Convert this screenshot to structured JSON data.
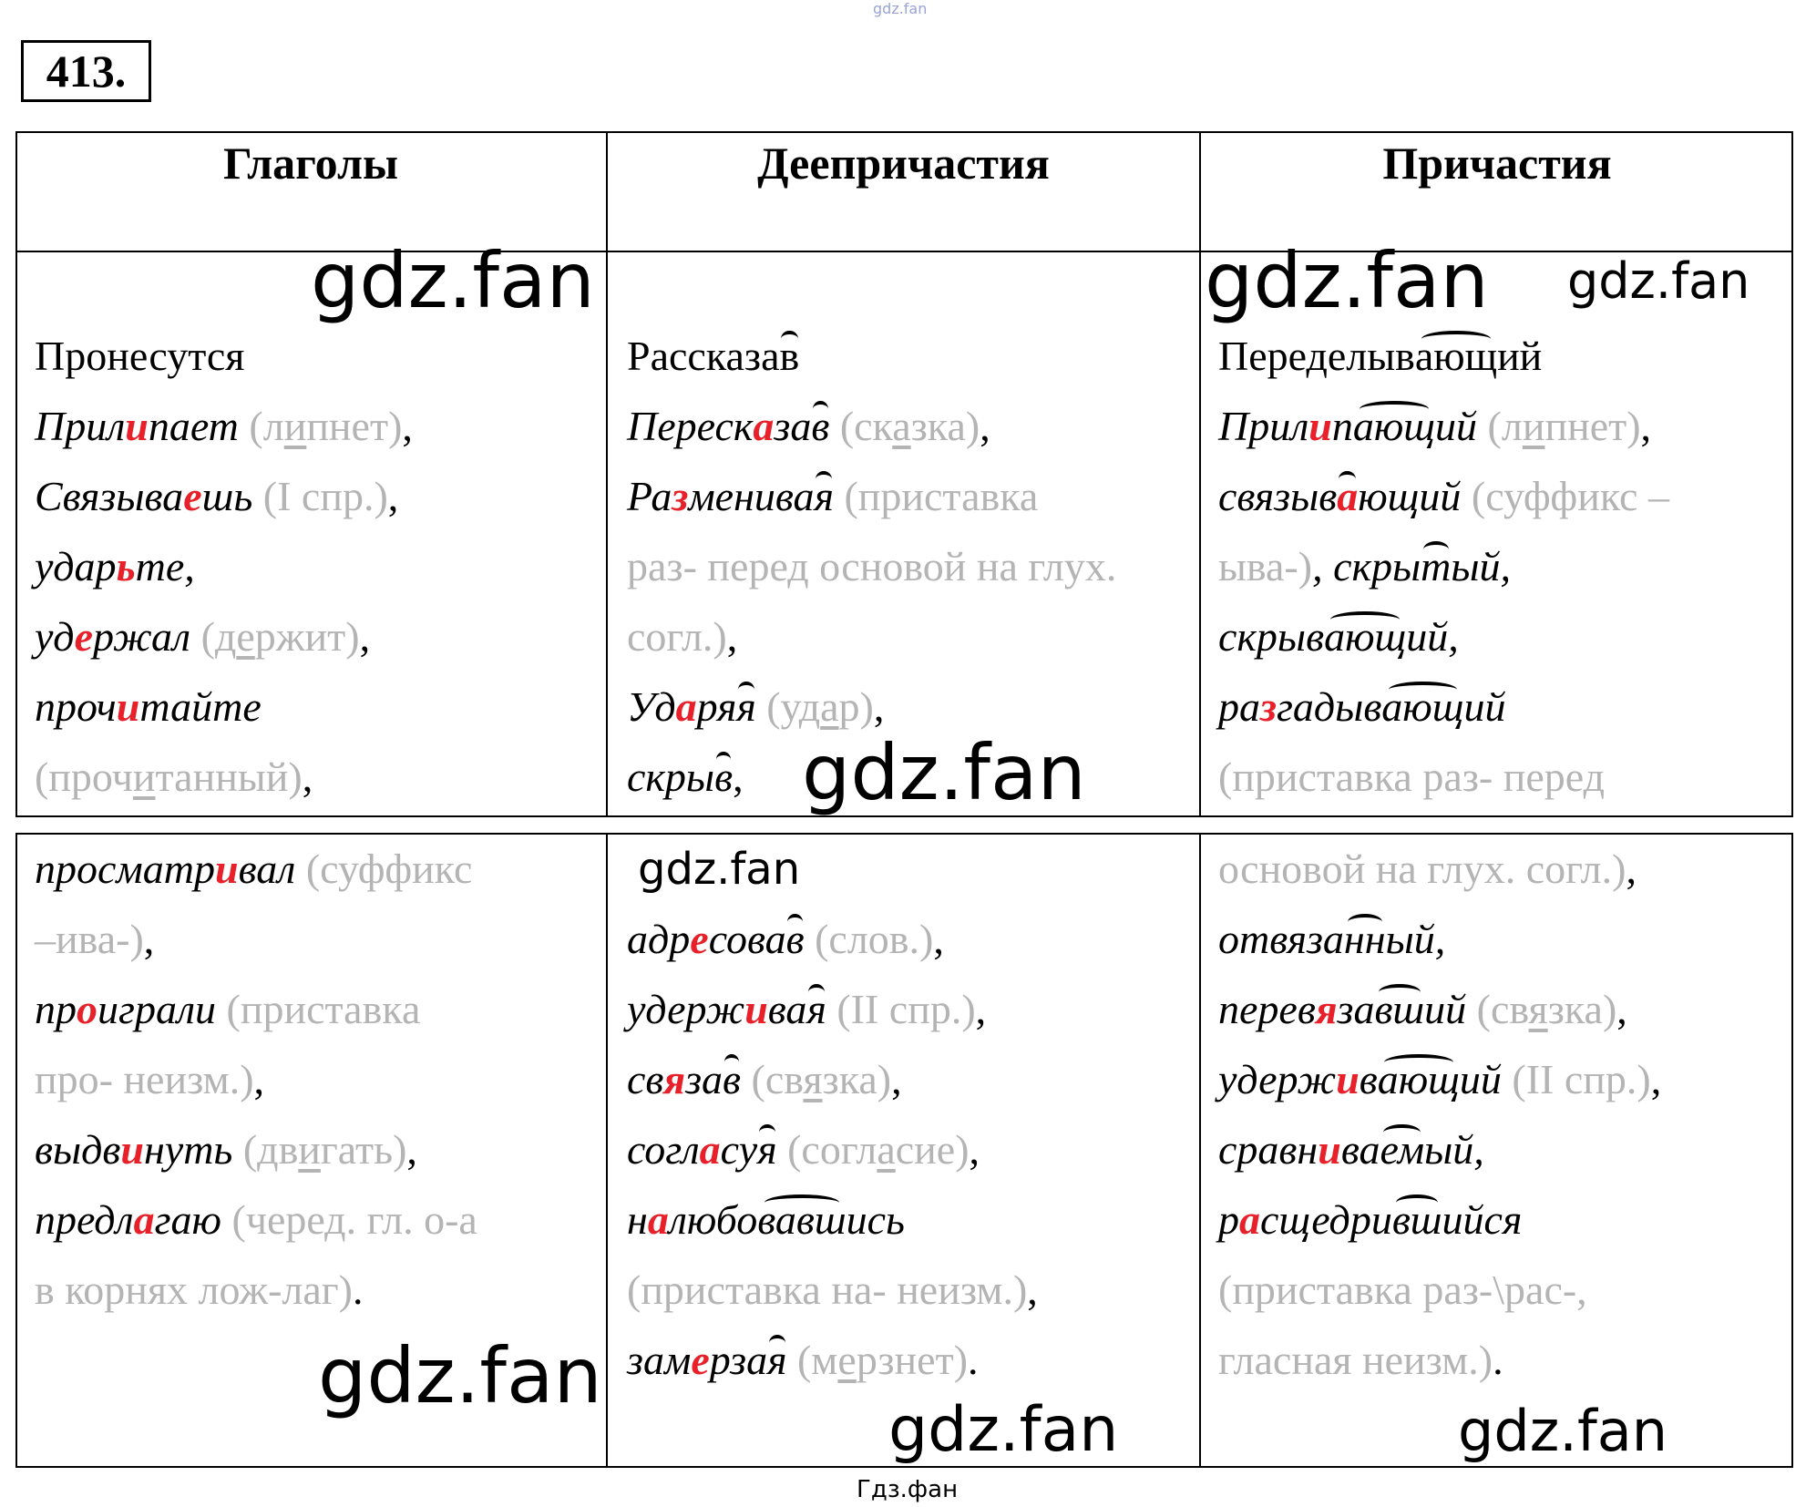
{
  "exercise_number": "413.",
  "top_watermark": "gdz.fan",
  "footer": "Гдз.фан",
  "headers": [
    "Глаголы",
    "Деепричастия",
    "Причастия"
  ],
  "watermark": "gdz.fan",
  "colors": {
    "highlight": "#e8202a",
    "note": "#b4b4b4",
    "border": "#000000"
  },
  "row1": [
    [
      [
        {
          "t": "Пронесутся",
          "s": "n"
        }
      ],
      [
        {
          "t": "Прил",
          "s": "i"
        },
        {
          "t": "и",
          "s": "r"
        },
        {
          "t": "пает ",
          "s": "i"
        },
        {
          "t": "(л",
          "s": "g"
        },
        {
          "t": "и",
          "s": "gu"
        },
        {
          "t": "пнет)",
          "s": "g"
        },
        {
          "t": ",",
          "s": "n"
        }
      ],
      [
        {
          "t": "Связыва",
          "s": "i"
        },
        {
          "t": "е",
          "s": "r"
        },
        {
          "t": "шь ",
          "s": "i"
        },
        {
          "t": "(I спр.)",
          "s": "g"
        },
        {
          "t": ",",
          "s": "n"
        }
      ],
      [
        {
          "t": "удар",
          "s": "i"
        },
        {
          "t": "ь",
          "s": "r"
        },
        {
          "t": "те,",
          "s": "i"
        }
      ],
      [
        {
          "t": "уд",
          "s": "i"
        },
        {
          "t": "е",
          "s": "r"
        },
        {
          "t": "ржал ",
          "s": "i"
        },
        {
          "t": "(д",
          "s": "g"
        },
        {
          "t": "е",
          "s": "gu"
        },
        {
          "t": "ржит)",
          "s": "g"
        },
        {
          "t": ",",
          "s": "n"
        }
      ],
      [
        {
          "t": "проч",
          "s": "i"
        },
        {
          "t": "и",
          "s": "r"
        },
        {
          "t": "тайте",
          "s": "i"
        }
      ],
      [
        {
          "t": "(проч",
          "s": "g"
        },
        {
          "t": "и",
          "s": "gu"
        },
        {
          "t": "танный)",
          "s": "g"
        },
        {
          "t": ",",
          "s": "n"
        }
      ]
    ],
    [
      [
        {
          "t": "Рассказа",
          "s": "n"
        },
        {
          "t": "в",
          "s": "n",
          "a": true
        }
      ],
      [
        {
          "t": "Переск",
          "s": "i"
        },
        {
          "t": "а",
          "s": "r"
        },
        {
          "t": "за",
          "s": "i"
        },
        {
          "t": "в",
          "s": "i",
          "a": true
        },
        {
          "t": " (ск",
          "s": "g"
        },
        {
          "t": "а",
          "s": "gu"
        },
        {
          "t": "зка)",
          "s": "g"
        },
        {
          "t": ",",
          "s": "n"
        }
      ],
      [
        {
          "t": "Ра",
          "s": "i"
        },
        {
          "t": "з",
          "s": "r"
        },
        {
          "t": "менива",
          "s": "i"
        },
        {
          "t": "я",
          "s": "i",
          "a": true
        },
        {
          "t": " (приставка",
          "s": "g"
        }
      ],
      [
        {
          "t": "раз- перед основой на глух.",
          "s": "g"
        }
      ],
      [
        {
          "t": "согл.)",
          "s": "g"
        },
        {
          "t": ",",
          "s": "n"
        }
      ],
      [
        {
          "t": "Уд",
          "s": "i"
        },
        {
          "t": "а",
          "s": "r"
        },
        {
          "t": "ря",
          "s": "i"
        },
        {
          "t": "я",
          "s": "i",
          "a": true
        },
        {
          "t": " (уд",
          "s": "g"
        },
        {
          "t": "а",
          "s": "gu"
        },
        {
          "t": "р)",
          "s": "g"
        },
        {
          "t": ",",
          "s": "n"
        }
      ],
      [
        {
          "t": "скры",
          "s": "i"
        },
        {
          "t": "в",
          "s": "i",
          "a": true
        },
        {
          "t": ",",
          "s": "n"
        }
      ]
    ],
    [
      [
        {
          "t": "Переделыв",
          "s": "n"
        },
        {
          "t": "ающ",
          "s": "n",
          "a": true
        },
        {
          "t": "ий",
          "s": "n"
        }
      ],
      [
        {
          "t": "Прил",
          "s": "i"
        },
        {
          "t": "и",
          "s": "r"
        },
        {
          "t": "п",
          "s": "i"
        },
        {
          "t": "ающ",
          "s": "i",
          "a": true
        },
        {
          "t": "ий ",
          "s": "i"
        },
        {
          "t": "(л",
          "s": "g"
        },
        {
          "t": "и",
          "s": "gu"
        },
        {
          "t": "пнет)",
          "s": "g"
        },
        {
          "t": ",",
          "s": "n"
        }
      ],
      [
        {
          "t": "связыв",
          "s": "i"
        },
        {
          "t": "а",
          "s": "r",
          "a": true
        },
        {
          "t": "ющий ",
          "s": "i"
        },
        {
          "t": "(суффикс –",
          "s": "g"
        }
      ],
      [
        {
          "t": "ыва-)",
          "s": "g"
        },
        {
          "t": ", скры",
          "s": "i"
        },
        {
          "t": "т",
          "s": "i",
          "a": true
        },
        {
          "t": "ый,",
          "s": "i"
        }
      ],
      [
        {
          "t": "скрыв",
          "s": "i"
        },
        {
          "t": "ающ",
          "s": "i",
          "a": true
        },
        {
          "t": "ий,",
          "s": "i"
        }
      ],
      [
        {
          "t": "ра",
          "s": "i"
        },
        {
          "t": "з",
          "s": "r"
        },
        {
          "t": "гадыв",
          "s": "i"
        },
        {
          "t": "ающ",
          "s": "i",
          "a": true
        },
        {
          "t": "ий",
          "s": "i"
        }
      ],
      [
        {
          "t": "(приставка раз- перед",
          "s": "g"
        }
      ]
    ]
  ],
  "row2": [
    [
      [
        {
          "t": "просматр",
          "s": "i"
        },
        {
          "t": "и",
          "s": "r"
        },
        {
          "t": "вал ",
          "s": "i"
        },
        {
          "t": "(суффикс",
          "s": "g"
        }
      ],
      [
        {
          "t": "–ива-)",
          "s": "g"
        },
        {
          "t": ",",
          "s": "n"
        }
      ],
      [
        {
          "t": "пр",
          "s": "i"
        },
        {
          "t": "о",
          "s": "r"
        },
        {
          "t": "играли ",
          "s": "i"
        },
        {
          "t": "(приставка",
          "s": "g"
        }
      ],
      [
        {
          "t": "про- неизм.)",
          "s": "g"
        },
        {
          "t": ",",
          "s": "n"
        }
      ],
      [
        {
          "t": "выдв",
          "s": "i"
        },
        {
          "t": "и",
          "s": "r"
        },
        {
          "t": "нуть ",
          "s": "i"
        },
        {
          "t": "(дв",
          "s": "g"
        },
        {
          "t": "и",
          "s": "gu"
        },
        {
          "t": "гать)",
          "s": "g"
        },
        {
          "t": ",",
          "s": "n"
        }
      ],
      [
        {
          "t": "предл",
          "s": "i"
        },
        {
          "t": "а",
          "s": "r"
        },
        {
          "t": "гаю ",
          "s": "i"
        },
        {
          "t": "(черед. гл. о-а",
          "s": "g"
        }
      ],
      [
        {
          "t": "в корнях лож-лаг)",
          "s": "g"
        },
        {
          "t": ".",
          "s": "n"
        }
      ]
    ],
    [
      [],
      [
        {
          "t": "адр",
          "s": "i"
        },
        {
          "t": "е",
          "s": "r"
        },
        {
          "t": "сова",
          "s": "i"
        },
        {
          "t": "в",
          "s": "i",
          "a": true
        },
        {
          "t": " (слов.)",
          "s": "g"
        },
        {
          "t": ",",
          "s": "n"
        }
      ],
      [
        {
          "t": "удерж",
          "s": "i"
        },
        {
          "t": "и",
          "s": "r"
        },
        {
          "t": "ва",
          "s": "i"
        },
        {
          "t": "я",
          "s": "i",
          "a": true
        },
        {
          "t": " (II спр.)",
          "s": "g"
        },
        {
          "t": ",",
          "s": "n"
        }
      ],
      [
        {
          "t": "св",
          "s": "i"
        },
        {
          "t": "я",
          "s": "r"
        },
        {
          "t": "за",
          "s": "i"
        },
        {
          "t": "в",
          "s": "i",
          "a": true
        },
        {
          "t": " (св",
          "s": "g"
        },
        {
          "t": "я",
          "s": "gu"
        },
        {
          "t": "зка)",
          "s": "g"
        },
        {
          "t": ",",
          "s": "n"
        }
      ],
      [
        {
          "t": "согл",
          "s": "i"
        },
        {
          "t": "а",
          "s": "r"
        },
        {
          "t": "су",
          "s": "i"
        },
        {
          "t": "я",
          "s": "i",
          "a": true
        },
        {
          "t": " (согл",
          "s": "g"
        },
        {
          "t": "а",
          "s": "gu"
        },
        {
          "t": "сие)",
          "s": "g"
        },
        {
          "t": ",",
          "s": "n"
        }
      ],
      [
        {
          "t": "н",
          "s": "i"
        },
        {
          "t": "а",
          "s": "r"
        },
        {
          "t": "любо",
          "s": "i"
        },
        {
          "t": "вавш",
          "s": "i",
          "a": true
        },
        {
          "t": "ись",
          "s": "i"
        }
      ],
      [
        {
          "t": "(приставка на- неизм.)",
          "s": "g"
        },
        {
          "t": ",",
          "s": "n"
        }
      ],
      [
        {
          "t": "зам",
          "s": "i"
        },
        {
          "t": "е",
          "s": "r"
        },
        {
          "t": "рза",
          "s": "i"
        },
        {
          "t": "я",
          "s": "i",
          "a": true
        },
        {
          "t": " (м",
          "s": "g"
        },
        {
          "t": "е",
          "s": "gu"
        },
        {
          "t": "рзнет)",
          "s": "g"
        },
        {
          "t": ".",
          "s": "n"
        }
      ]
    ],
    [
      [
        {
          "t": "основой на глух. согл.)",
          "s": "g"
        },
        {
          "t": ",",
          "s": "n"
        }
      ],
      [
        {
          "t": "отвяза",
          "s": "i"
        },
        {
          "t": "нн",
          "s": "i",
          "a": true
        },
        {
          "t": "ый,",
          "s": "i"
        }
      ],
      [
        {
          "t": "перев",
          "s": "i"
        },
        {
          "t": "я",
          "s": "r"
        },
        {
          "t": "за",
          "s": "i"
        },
        {
          "t": "вш",
          "s": "i",
          "a": true
        },
        {
          "t": "ий ",
          "s": "i"
        },
        {
          "t": "(св",
          "s": "g"
        },
        {
          "t": "я",
          "s": "gu"
        },
        {
          "t": "зка)",
          "s": "g"
        },
        {
          "t": ",",
          "s": "n"
        }
      ],
      [
        {
          "t": "удерж",
          "s": "i"
        },
        {
          "t": "и",
          "s": "r"
        },
        {
          "t": "в",
          "s": "i"
        },
        {
          "t": "ающ",
          "s": "i",
          "a": true
        },
        {
          "t": "ий ",
          "s": "i"
        },
        {
          "t": "(II спр.)",
          "s": "g"
        },
        {
          "t": ",",
          "s": "n"
        }
      ],
      [
        {
          "t": "сравн",
          "s": "i"
        },
        {
          "t": "и",
          "s": "r"
        },
        {
          "t": "ва",
          "s": "i"
        },
        {
          "t": "ем",
          "s": "i",
          "a": true
        },
        {
          "t": "ый,",
          "s": "i"
        }
      ],
      [
        {
          "t": "р",
          "s": "i"
        },
        {
          "t": "а",
          "s": "r"
        },
        {
          "t": "сщедри",
          "s": "i"
        },
        {
          "t": "вш",
          "s": "i",
          "a": true
        },
        {
          "t": "ийся",
          "s": "i"
        }
      ],
      [
        {
          "t": "(приставка раз-\\рас-,",
          "s": "g"
        }
      ],
      [
        {
          "t": "гласная неизм.)",
          "s": "g"
        },
        {
          "t": ".",
          "s": "n"
        }
      ]
    ]
  ]
}
